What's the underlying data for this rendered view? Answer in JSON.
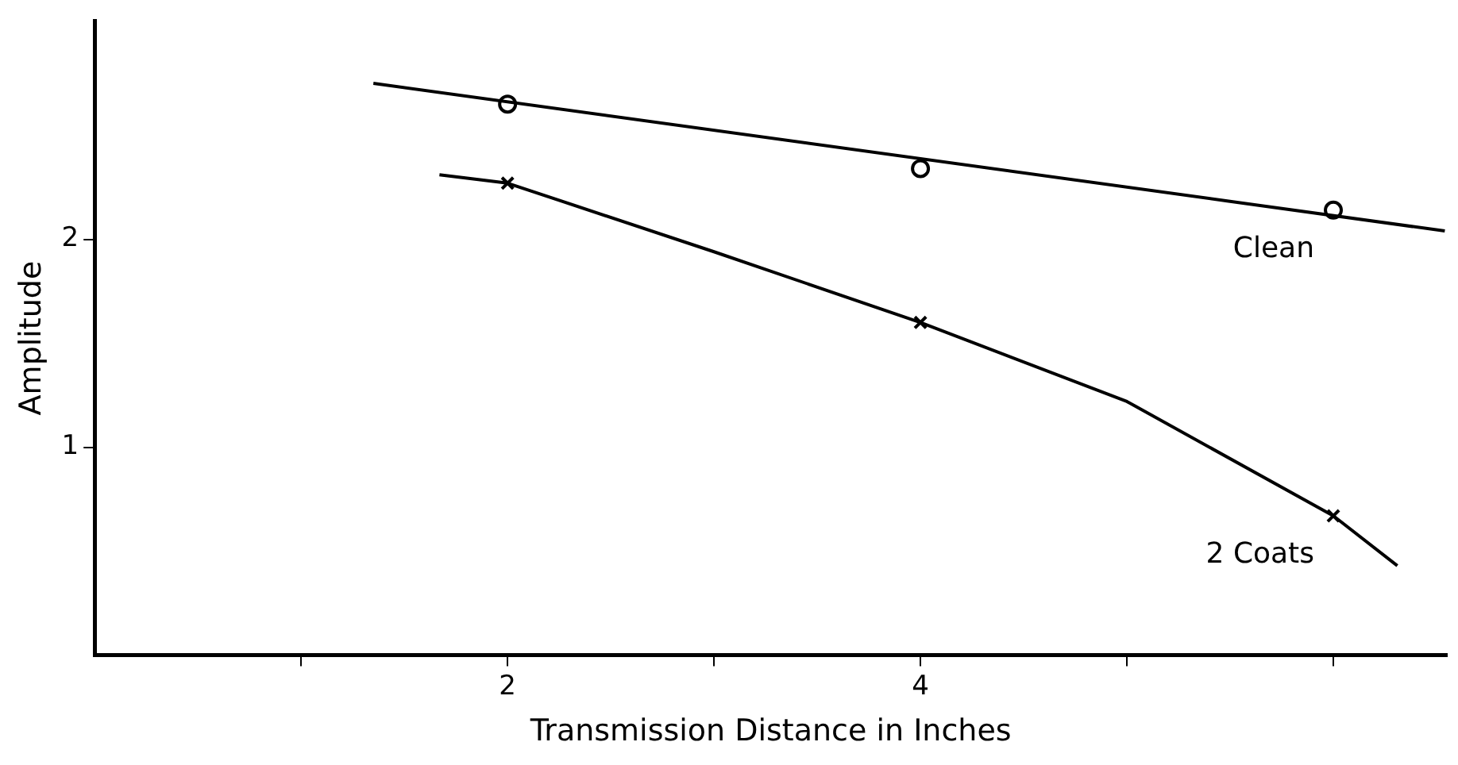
{
  "chart_data": {
    "type": "line",
    "xlabel": "Transmission Distance in Inches",
    "ylabel": "Amplitude",
    "xlim": [
      0,
      6.55
    ],
    "ylim": [
      0,
      3.05
    ],
    "xticks": [
      {
        "value": 1,
        "label": null
      },
      2,
      {
        "value": 3,
        "label": null
      },
      4,
      {
        "value": 5,
        "label": null
      },
      {
        "value": 6,
        "label": null
      }
    ],
    "yticks": [
      1,
      2
    ],
    "grid": false,
    "legend": false,
    "series": [
      {
        "color": "#000000",
        "marker": "none",
        "x": [
          1.35,
          6.54
        ],
        "values": [
          2.75,
          2.04
        ]
      },
      {
        "color": "#000000",
        "marker": "none",
        "x": [
          1.67,
          2,
          3,
          4,
          5,
          6,
          6.31
        ],
        "values": [
          2.31,
          2.27,
          1.94,
          1.6,
          1.22,
          0.67,
          0.43
        ]
      },
      {
        "type": "scatter",
        "name": "Clean",
        "color": "#000000",
        "marker": "circle",
        "x": [
          2,
          4,
          6
        ],
        "values": [
          2.65,
          2.34,
          2.14
        ]
      },
      {
        "type": "scatter",
        "name": "2 Coats",
        "color": "#000000",
        "marker": "cross",
        "x": [
          2,
          4,
          6
        ],
        "values": [
          2.27,
          1.6,
          0.67
        ]
      }
    ]
  }
}
